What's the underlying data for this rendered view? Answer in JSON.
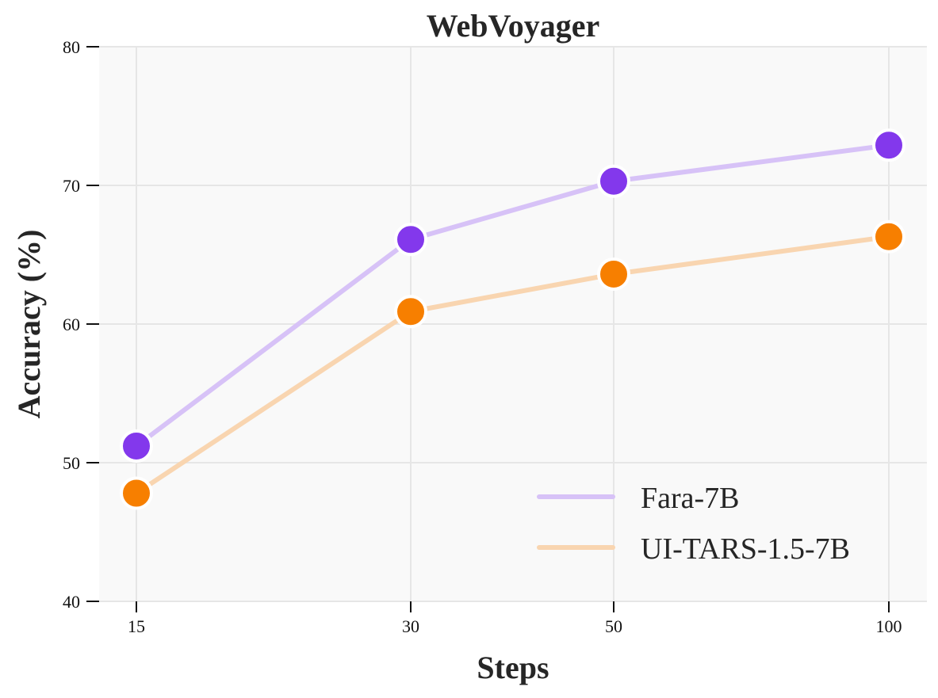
{
  "chart_data": {
    "type": "line",
    "title": "WebVoyager",
    "xlabel": "Steps",
    "ylabel": "Accuracy (%)",
    "categories": [
      "15",
      "30",
      "50",
      "100"
    ],
    "x": [
      15,
      30,
      50,
      100
    ],
    "x_scale": "log",
    "ylim": [
      40,
      80
    ],
    "yticks": [
      40,
      50,
      60,
      70,
      80
    ],
    "grid": true,
    "legend_position": "lower right",
    "series": [
      {
        "name": "Fara-7B",
        "values": [
          51.2,
          66.1,
          70.3,
          72.9
        ],
        "marker_color": "#8338EC",
        "line_color": "#D7C2F7"
      },
      {
        "name": "UI-TARS-1.5-7B",
        "values": [
          47.8,
          60.9,
          63.6,
          66.3
        ],
        "marker_color": "#F77F00",
        "line_color": "#F9D5B0"
      }
    ]
  },
  "colors": {
    "plot_background": "#F9F9F9",
    "grid": "#E6E6E6",
    "text": "#262626"
  }
}
